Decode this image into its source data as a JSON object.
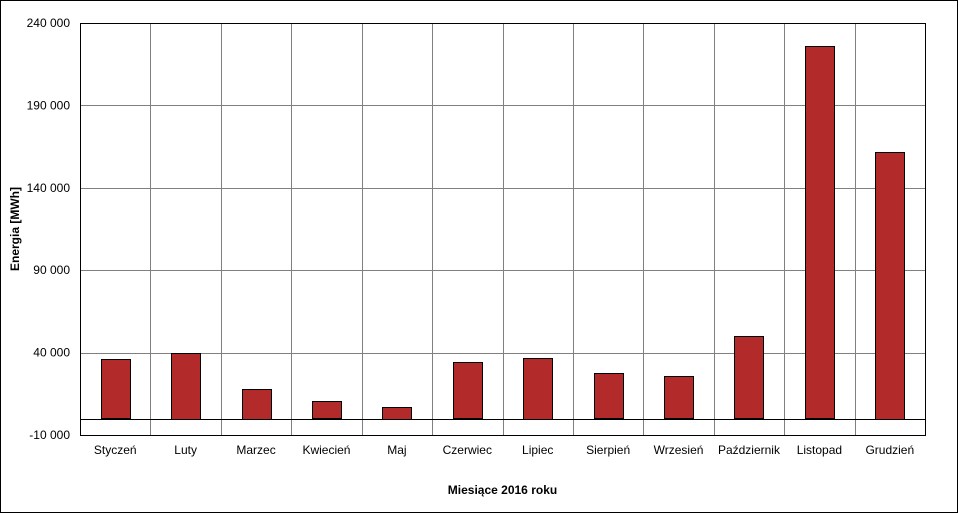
{
  "chart_data": {
    "type": "bar",
    "title": "",
    "xlabel": "Miesiące 2016  roku",
    "ylabel": "Energia  [MWh]",
    "categories": [
      "Styczeń",
      "Luty",
      "Marzec",
      "Kwiecień",
      "Maj",
      "Czerwiec",
      "Lipiec",
      "Sierpień",
      "Wrzesień",
      "Październik",
      "Listopad",
      "Grudzień"
    ],
    "values": [
      36000,
      40000,
      18000,
      10500,
      7000,
      34000,
      37000,
      27500,
      25500,
      50000,
      226000,
      162000
    ],
    "ylim": [
      -10000,
      240000
    ],
    "yticks": [
      -10000,
      40000,
      90000,
      140000,
      190000,
      240000
    ],
    "ytick_labels": [
      "-10 000",
      "40 000",
      "90 000",
      "140 000",
      "190 000",
      "240 000"
    ],
    "grid": true,
    "legend": "none",
    "colors": {
      "bar": "#b22a2a",
      "grid": "#808080",
      "axis": "#000000"
    }
  }
}
